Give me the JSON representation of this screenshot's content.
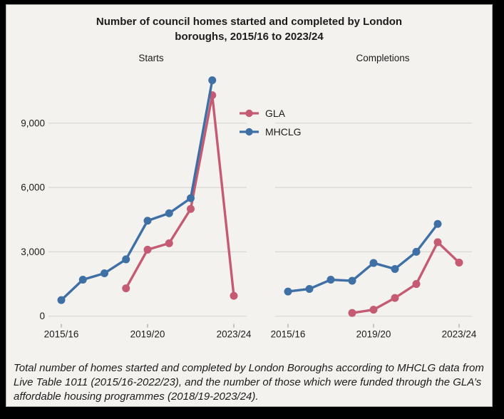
{
  "title": "Number of council homes started and completed by London boroughs, 2015/16 to 2023/24",
  "legend": {
    "items": [
      {
        "label": "GLA",
        "color": "#c45b72"
      },
      {
        "label": "MHCLG",
        "color": "#3e6fa5"
      }
    ]
  },
  "colors": {
    "background": "#f4f2ee",
    "frame": "#000000",
    "gridline": "#d8d6d2",
    "tick": "#a9a7a3",
    "text": "#1c1c1c",
    "gla": "#c45b72",
    "mhclg": "#3e6fa5"
  },
  "footnote": "Total number of homes started and completed by London Boroughs according to MHCLG data from Live Table 1011 (2015/16-2022/23), and the number of those which were funded through the GLA’s affordable housing programmes (2018/19-2023/24).",
  "chart_data": [
    {
      "type": "line",
      "title": "Starts",
      "categories": [
        "2015/16",
        "2016/17",
        "2017/18",
        "2018/19",
        "2019/20",
        "2020/21",
        "2021/22",
        "2022/23",
        "2023/24"
      ],
      "x_tick_labels": [
        "2015/16",
        "2019/20",
        "2023/24"
      ],
      "yticks": [
        0,
        3000,
        6000,
        9000
      ],
      "ylim": [
        0,
        11500
      ],
      "grid": "horizontal",
      "legend_position": "top-center",
      "series": [
        {
          "name": "GLA",
          "color": "#c45b72",
          "values": [
            null,
            null,
            null,
            1300,
            3100,
            3400,
            5000,
            10300,
            950
          ]
        },
        {
          "name": "MHCLG",
          "color": "#3e6fa5",
          "values": [
            750,
            1700,
            2000,
            2650,
            4450,
            4800,
            5500,
            11000,
            null
          ]
        }
      ]
    },
    {
      "type": "line",
      "title": "Completions",
      "categories": [
        "2015/16",
        "2016/17",
        "2017/18",
        "2018/19",
        "2019/20",
        "2020/21",
        "2021/22",
        "2022/23",
        "2023/24"
      ],
      "x_tick_labels": [
        "2015/16",
        "2019/20",
        "2023/24"
      ],
      "yticks": [
        0,
        3000,
        6000,
        9000
      ],
      "ylim": [
        0,
        11500
      ],
      "grid": "horizontal",
      "legend_position": "shared",
      "series": [
        {
          "name": "GLA",
          "color": "#c45b72",
          "values": [
            null,
            null,
            null,
            150,
            300,
            850,
            1500,
            3450,
            2500
          ]
        },
        {
          "name": "MHCLG",
          "color": "#3e6fa5",
          "values": [
            1150,
            1270,
            1700,
            1650,
            2480,
            2200,
            3000,
            4300,
            null
          ]
        }
      ]
    }
  ]
}
